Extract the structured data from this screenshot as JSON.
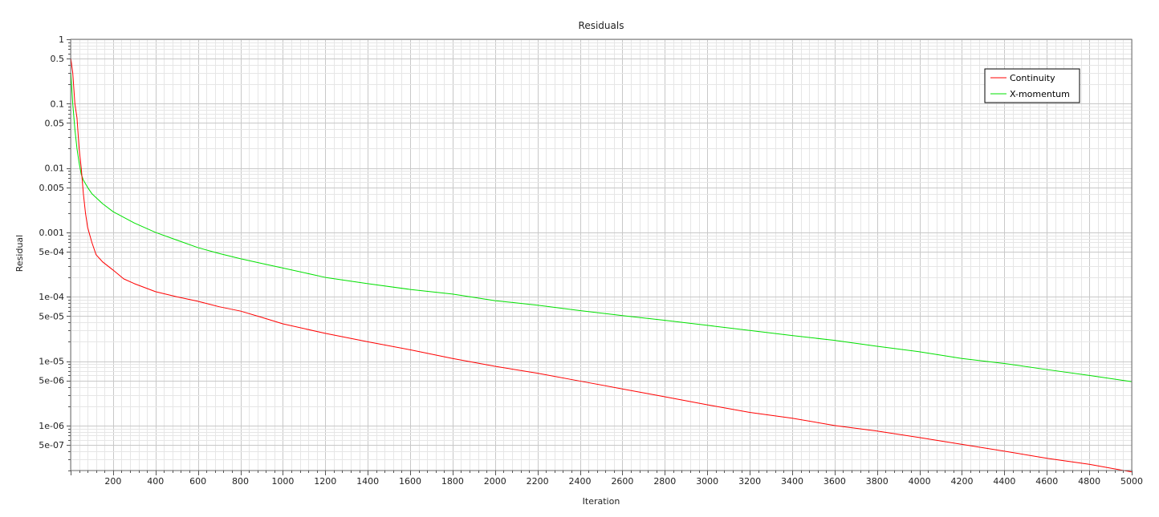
{
  "chart_data": {
    "type": "line",
    "title": "Residuals",
    "xlabel": "Iteration",
    "ylabel": "Residual",
    "x_scale": "linear",
    "y_scale": "log",
    "xlim": [
      0,
      5000
    ],
    "ylim": [
      2e-07,
      1
    ],
    "grid": true,
    "legend_position": "top-right",
    "x_ticks": [
      200,
      400,
      600,
      800,
      1000,
      1200,
      1400,
      1600,
      1800,
      2000,
      2200,
      2400,
      2600,
      2800,
      3000,
      3200,
      3400,
      3600,
      3800,
      4000,
      4200,
      4400,
      4600,
      4800,
      5000
    ],
    "y_ticks": [
      {
        "value": 1,
        "label": "1"
      },
      {
        "value": 0.5,
        "label": "0.5"
      },
      {
        "value": 0.1,
        "label": "0.1"
      },
      {
        "value": 0.05,
        "label": "0.05"
      },
      {
        "value": 0.01,
        "label": "0.01"
      },
      {
        "value": 0.005,
        "label": "0.005"
      },
      {
        "value": 0.001,
        "label": "0.001"
      },
      {
        "value": 0.0005,
        "label": "5e-04"
      },
      {
        "value": 0.0001,
        "label": "1e-04"
      },
      {
        "value": 5e-05,
        "label": "5e-05"
      },
      {
        "value": 1e-05,
        "label": "1e-05"
      },
      {
        "value": 5e-06,
        "label": "5e-06"
      },
      {
        "value": 1e-06,
        "label": "1e-06"
      },
      {
        "value": 5e-07,
        "label": "5e-07"
      }
    ],
    "series": [
      {
        "name": "Continuity",
        "color": "#ff0000",
        "points": [
          [
            1,
            0.5
          ],
          [
            10,
            0.3
          ],
          [
            20,
            0.1
          ],
          [
            30,
            0.06
          ],
          [
            40,
            0.02
          ],
          [
            50,
            0.01
          ],
          [
            60,
            0.004
          ],
          [
            70,
            0.002
          ],
          [
            80,
            0.0012
          ],
          [
            100,
            0.0007
          ],
          [
            120,
            0.00045
          ],
          [
            150,
            0.00035
          ],
          [
            200,
            0.00026
          ],
          [
            250,
            0.00019
          ],
          [
            300,
            0.00016
          ],
          [
            400,
            0.00012
          ],
          [
            500,
            0.0001
          ],
          [
            600,
            8.5e-05
          ],
          [
            700,
            7e-05
          ],
          [
            800,
            6e-05
          ],
          [
            900,
            4.8e-05
          ],
          [
            1000,
            3.8e-05
          ],
          [
            1200,
            2.7e-05
          ],
          [
            1400,
            2e-05
          ],
          [
            1600,
            1.5e-05
          ],
          [
            1800,
            1.1e-05
          ],
          [
            2000,
            8.3e-06
          ],
          [
            2200,
            6.5e-06
          ],
          [
            2400,
            4.9e-06
          ],
          [
            2600,
            3.7e-06
          ],
          [
            2800,
            2.8e-06
          ],
          [
            3000,
            2.1e-06
          ],
          [
            3200,
            1.6e-06
          ],
          [
            3400,
            1.3e-06
          ],
          [
            3600,
            1e-06
          ],
          [
            3800,
            8.2e-07
          ],
          [
            4000,
            6.5e-07
          ],
          [
            4200,
            5.1e-07
          ],
          [
            4400,
            4e-07
          ],
          [
            4600,
            3.1e-07
          ],
          [
            4800,
            2.5e-07
          ],
          [
            5000,
            1.9e-07
          ]
        ]
      },
      {
        "name": "X-momentum",
        "color": "#00e000",
        "points": [
          [
            1,
            0.3
          ],
          [
            10,
            0.1
          ],
          [
            20,
            0.04
          ],
          [
            30,
            0.02
          ],
          [
            40,
            0.012
          ],
          [
            50,
            0.008
          ],
          [
            60,
            0.0065
          ],
          [
            80,
            0.005
          ],
          [
            100,
            0.004
          ],
          [
            150,
            0.0028
          ],
          [
            200,
            0.0021
          ],
          [
            300,
            0.0014
          ],
          [
            400,
            0.001
          ],
          [
            500,
            0.00076
          ],
          [
            600,
            0.00058
          ],
          [
            700,
            0.00047
          ],
          [
            800,
            0.00039
          ],
          [
            900,
            0.00033
          ],
          [
            1000,
            0.00028
          ],
          [
            1200,
            0.0002
          ],
          [
            1400,
            0.00016
          ],
          [
            1600,
            0.00013
          ],
          [
            1800,
            0.00011
          ],
          [
            2000,
            8.7e-05
          ],
          [
            2200,
            7.4e-05
          ],
          [
            2400,
            6.1e-05
          ],
          [
            2600,
            5.1e-05
          ],
          [
            2800,
            4.3e-05
          ],
          [
            3000,
            3.6e-05
          ],
          [
            3200,
            3e-05
          ],
          [
            3400,
            2.5e-05
          ],
          [
            3600,
            2.1e-05
          ],
          [
            3800,
            1.7e-05
          ],
          [
            4000,
            1.4e-05
          ],
          [
            4200,
            1.1e-05
          ],
          [
            4400,
            9.2e-06
          ],
          [
            4600,
            7.4e-06
          ],
          [
            4800,
            6e-06
          ],
          [
            5000,
            4.8e-06
          ]
        ]
      }
    ]
  }
}
